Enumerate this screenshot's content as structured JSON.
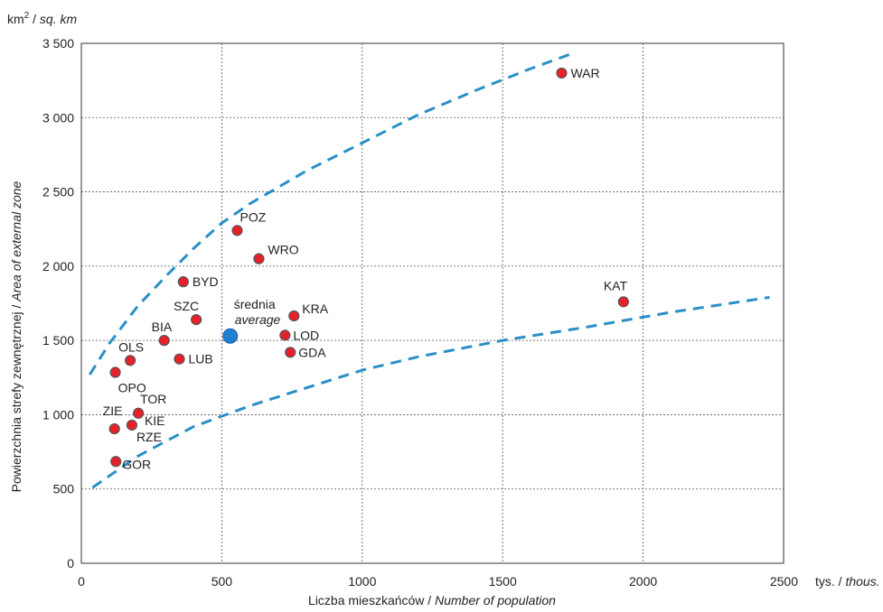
{
  "chart_data": {
    "type": "scatter",
    "title": "",
    "y_unit_main": "km",
    "y_unit_sup": "2",
    "y_unit_sep": " / ",
    "y_unit_alt": "sq. km",
    "ylabel_main": "Powierzchnia strefy zewnętrznej / ",
    "ylabel_alt": "Area of external zone",
    "xlabel_main": "Liczba mieszkańców / ",
    "xlabel_alt": "Number of population",
    "x_unit_main": "tys. / ",
    "x_unit_alt": "thous.",
    "xlim": [
      0,
      2500
    ],
    "ylim": [
      0,
      3500
    ],
    "xticks": [
      0,
      500,
      1000,
      1500,
      2000,
      2500
    ],
    "yticks": [
      0,
      500,
      1000,
      1500,
      2000,
      2500,
      3000,
      3500
    ],
    "ytick_labels": [
      "0",
      "500",
      "1 000",
      "1 500",
      "2 000",
      "2 500",
      "3 000",
      "3 500"
    ],
    "xtick_labels": [
      "0",
      "500",
      "1000",
      "1500",
      "2000",
      "2500"
    ],
    "grid": true,
    "point_color": "#e8202a",
    "point_outline": "#555555",
    "average_color": "#1f7fd0",
    "trend_color": "#2a8fc6",
    "points": [
      {
        "label": "WAR",
        "x": 1710,
        "y": 3300
      },
      {
        "label": "KAT",
        "x": 1930,
        "y": 1760
      },
      {
        "label": "POZ",
        "x": 555,
        "y": 2240
      },
      {
        "label": "WRO",
        "x": 632,
        "y": 2050
      },
      {
        "label": "BYD",
        "x": 363,
        "y": 1895
      },
      {
        "label": "SZC",
        "x": 409,
        "y": 1640
      },
      {
        "label": "KRA",
        "x": 757,
        "y": 1665
      },
      {
        "label": "LOD",
        "x": 725,
        "y": 1535
      },
      {
        "label": "GDA",
        "x": 744,
        "y": 1420
      },
      {
        "label": "BIA",
        "x": 295,
        "y": 1500
      },
      {
        "label": "LUB",
        "x": 349,
        "y": 1375
      },
      {
        "label": "OLS",
        "x": 174,
        "y": 1365
      },
      {
        "label": "OPO",
        "x": 121,
        "y": 1285
      },
      {
        "label": "TOR",
        "x": 203,
        "y": 1010
      },
      {
        "label": "KIE",
        "x": 180,
        "y": 930
      },
      {
        "label": "RZE",
        "x": 180,
        "y": 930
      },
      {
        "label": "ZIE",
        "x": 118,
        "y": 905
      },
      {
        "label": "GOR",
        "x": 123,
        "y": 685
      }
    ],
    "average": {
      "label": "średnia",
      "label_alt": "average",
      "x": 530,
      "y": 1530
    },
    "trend_upper": {
      "x": [
        30,
        100,
        200,
        300,
        400,
        500,
        600,
        800,
        1000,
        1200,
        1400,
        1600,
        1760
      ],
      "y": [
        1270,
        1480,
        1730,
        1930,
        2120,
        2290,
        2420,
        2640,
        2830,
        3020,
        3180,
        3330,
        3440
      ]
    },
    "trend_lower": {
      "x": [
        40,
        200,
        400,
        500,
        600,
        800,
        1000,
        1200,
        1500,
        1800,
        2100,
        2450
      ],
      "y": [
        510,
        720,
        920,
        990,
        1060,
        1180,
        1300,
        1390,
        1500,
        1590,
        1690,
        1790
      ]
    }
  }
}
